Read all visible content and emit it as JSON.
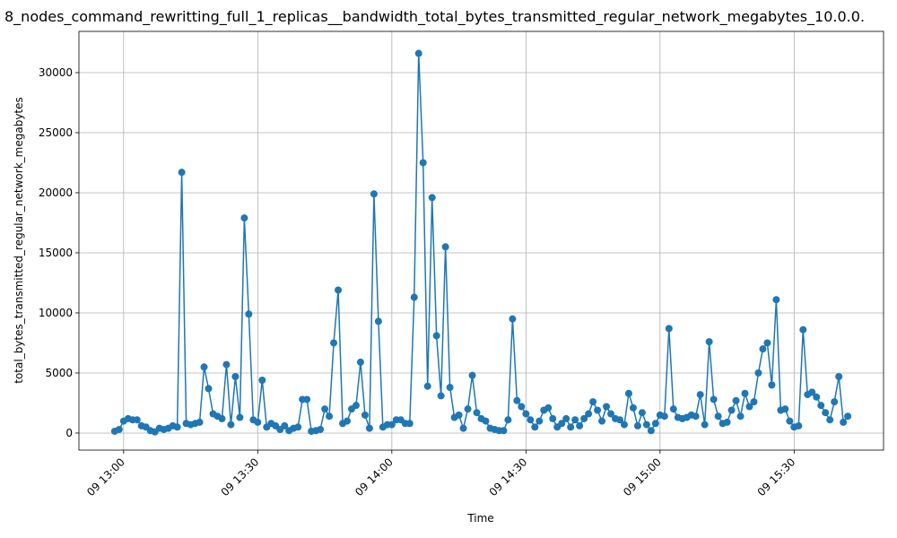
{
  "chart_data": {
    "type": "line",
    "title": "8_nodes_command_rewritting_full_1_replicas__bandwidth_total_bytes_transmitted_regular_network_megabytes_10.0.0.",
    "x_label": "Time",
    "y_label": "total_bytes_transmitted_regular_network_megabytes",
    "grid": true,
    "x": [
      "09 12:58",
      "09 12:59",
      "09 13:00",
      "09 13:01",
      "09 13:02",
      "09 13:03",
      "09 13:04",
      "09 13:05",
      "09 13:06",
      "09 13:07",
      "09 13:08",
      "09 13:09",
      "09 13:10",
      "09 13:11",
      "09 13:12",
      "09 13:13",
      "09 13:14",
      "09 13:15",
      "09 13:16",
      "09 13:17",
      "09 13:18",
      "09 13:19",
      "09 13:20",
      "09 13:21",
      "09 13:22",
      "09 13:23",
      "09 13:24",
      "09 13:25",
      "09 13:26",
      "09 13:27",
      "09 13:28",
      "09 13:29",
      "09 13:30",
      "09 13:31",
      "09 13:32",
      "09 13:33",
      "09 13:34",
      "09 13:35",
      "09 13:36",
      "09 13:37",
      "09 13:38",
      "09 13:39",
      "09 13:40",
      "09 13:41",
      "09 13:42",
      "09 13:43",
      "09 13:44",
      "09 13:45",
      "09 13:46",
      "09 13:47",
      "09 13:48",
      "09 13:49",
      "09 13:50",
      "09 13:51",
      "09 13:52",
      "09 13:53",
      "09 13:54",
      "09 13:55",
      "09 13:56",
      "09 13:57",
      "09 13:58",
      "09 13:59",
      "09 14:00",
      "09 14:01",
      "09 14:02",
      "09 14:03",
      "09 14:04",
      "09 14:05",
      "09 14:06",
      "09 14:07",
      "09 14:08",
      "09 14:09",
      "09 14:10",
      "09 14:11",
      "09 14:12",
      "09 14:13",
      "09 14:14",
      "09 14:15",
      "09 14:16",
      "09 14:17",
      "09 14:18",
      "09 14:19",
      "09 14:20",
      "09 14:21",
      "09 14:22",
      "09 14:23",
      "09 14:24",
      "09 14:25",
      "09 14:26",
      "09 14:27",
      "09 14:28",
      "09 14:29",
      "09 14:30",
      "09 14:31",
      "09 14:32",
      "09 14:33",
      "09 14:34",
      "09 14:35",
      "09 14:36",
      "09 14:37",
      "09 14:38",
      "09 14:39",
      "09 14:40",
      "09 14:41",
      "09 14:42",
      "09 14:43",
      "09 14:44",
      "09 14:45",
      "09 14:46",
      "09 14:47",
      "09 14:48",
      "09 14:49",
      "09 14:50",
      "09 14:51",
      "09 14:52",
      "09 14:53",
      "09 14:54",
      "09 14:55",
      "09 14:56",
      "09 14:57",
      "09 14:58",
      "09 14:59",
      "09 15:00",
      "09 15:01",
      "09 15:02",
      "09 15:03",
      "09 15:04",
      "09 15:05",
      "09 15:06",
      "09 15:07",
      "09 15:08",
      "09 15:09",
      "09 15:10",
      "09 15:11",
      "09 15:12",
      "09 15:13",
      "09 15:14",
      "09 15:15",
      "09 15:16",
      "09 15:17",
      "09 15:18",
      "09 15:19",
      "09 15:20",
      "09 15:21",
      "09 15:22",
      "09 15:23",
      "09 15:24",
      "09 15:25",
      "09 15:26",
      "09 15:27",
      "09 15:28",
      "09 15:29",
      "09 15:30",
      "09 15:31",
      "09 15:32",
      "09 15:33",
      "09 15:34",
      "09 15:35",
      "09 15:36",
      "09 15:37",
      "09 15:38",
      "09 15:39",
      "09 15:40",
      "09 15:41",
      "09 15:42"
    ],
    "series": [
      {
        "color": "#1f77b4",
        "values": [
          150,
          300,
          1000,
          1200,
          1100,
          1100,
          600,
          500,
          200,
          100,
          400,
          300,
          400,
          600,
          500,
          21700,
          800,
          700,
          800,
          900,
          5500,
          3700,
          1600,
          1400,
          1200,
          5700,
          700,
          4700,
          1300,
          17900,
          9900,
          1100,
          900,
          4400,
          500,
          800,
          600,
          300,
          600,
          200,
          400,
          500,
          2800,
          2800,
          150,
          200,
          300,
          2000,
          1400,
          7500,
          11900,
          800,
          1000,
          2000,
          2300,
          5900,
          1500,
          400,
          19900,
          9300,
          500,
          700,
          700,
          1100,
          1100,
          800,
          800,
          11300,
          31600,
          22500,
          3900,
          19600,
          8100,
          3100,
          15500,
          3800,
          1300,
          1500,
          400,
          2000,
          4800,
          1700,
          1200,
          1000,
          400,
          300,
          200,
          200,
          1100,
          9500,
          2700,
          2200,
          1600,
          1100,
          500,
          1000,
          1900,
          2100,
          1200,
          500,
          800,
          1200,
          500,
          1100,
          600,
          1200,
          1600,
          2600,
          1900,
          1000,
          2200,
          1600,
          1200,
          1100,
          700,
          3300,
          2100,
          600,
          1700,
          700,
          200,
          800,
          1500,
          1400,
          8700,
          2000,
          1300,
          1200,
          1300,
          1500,
          1400,
          3200,
          700,
          7600,
          2800,
          1400,
          800,
          900,
          1900,
          2700,
          1400,
          3300,
          2200,
          2600,
          5000,
          7000,
          7500,
          4000,
          11100,
          1900,
          2000,
          1000,
          500,
          600,
          8600,
          3200,
          3400,
          3000,
          2300,
          1700,
          1100,
          2600,
          4700,
          900,
          1400
        ]
      }
    ],
    "xlim": [
      "09 12:50",
      "09 15:50"
    ],
    "xticks": [
      "09 13:00",
      "09 13:30",
      "09 14:00",
      "09 14:30",
      "09 15:00",
      "09 15:30"
    ],
    "ylim": [
      -1420,
      33430
    ],
    "yticks": [
      0,
      5000,
      10000,
      15000,
      20000,
      25000,
      30000
    ]
  }
}
